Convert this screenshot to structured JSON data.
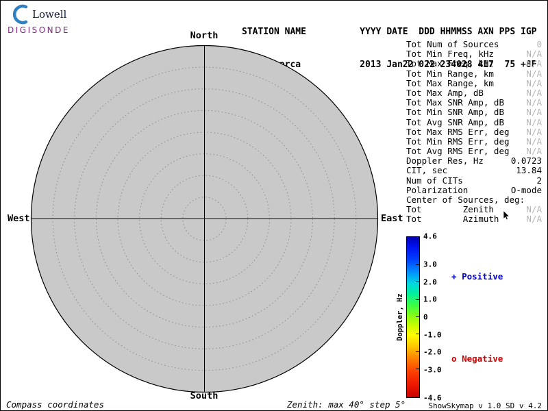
{
  "logo": {
    "name": "Lowell",
    "brand": "DIGISONDE"
  },
  "header": {
    "line1": "STATION NAME          YYYY DATE  DDD HHMMSS AXN PPS IGP",
    "line2": "  Jicamarca           2013 Jan22 022 234028 417  75 +8F"
  },
  "compass": {
    "north": "North",
    "south": "South",
    "east": "East",
    "west": "West"
  },
  "plot": {
    "coordinate_system": "Compass coordinates",
    "max_zenith_deg": 40,
    "step_deg": 5
  },
  "stats": [
    {
      "label": "Tot Num of Sources",
      "value": "0",
      "muted": true
    },
    {
      "label": "Tot Min Freq, kHz",
      "value": "N/A",
      "muted": true
    },
    {
      "label": "Tot Max Freq, kHz",
      "value": "N/A",
      "muted": true
    },
    {
      "label": "Tot Min Range, km",
      "value": "N/A",
      "muted": true
    },
    {
      "label": "Tot Max Range, km",
      "value": "N/A",
      "muted": true
    },
    {
      "label": "Tot Max Amp, dB",
      "value": "N/A",
      "muted": true
    },
    {
      "label": "Tot Max SNR Amp, dB",
      "value": "N/A",
      "muted": true
    },
    {
      "label": "Tot Min SNR Amp, dB",
      "value": "N/A",
      "muted": true
    },
    {
      "label": "Tot Avg SNR Amp, dB",
      "value": "N/A",
      "muted": true
    },
    {
      "label": "Tot Max RMS Err, deg",
      "value": "N/A",
      "muted": true
    },
    {
      "label": "Tot Min RMS Err, deg",
      "value": "N/A",
      "muted": true
    },
    {
      "label": "Tot Avg RMS Err, deg",
      "value": "N/A",
      "muted": true
    },
    {
      "label": "Doppler Res, Hz",
      "value": "0.0723",
      "muted": false
    },
    {
      "label": "CIT, sec",
      "value": "13.84",
      "muted": false
    },
    {
      "label": "Num of CITs",
      "value": "2",
      "muted": false
    },
    {
      "label": "Polarization",
      "value": "O-mode",
      "muted": false
    },
    {
      "label": "Center of Sources, deg:",
      "value": "",
      "muted": false
    },
    {
      "label": "Tot        Zenith",
      "value": "N/A",
      "muted": true
    },
    {
      "label": "Tot        Azimuth",
      "value": "N/A",
      "muted": true
    }
  ],
  "colorbar": {
    "title": "Doppler, Hz",
    "max": 4.6,
    "min": -4.6,
    "ticks": [
      {
        "label": "4.6",
        "value": 4.6
      },
      {
        "label": "3.0",
        "value": 3.0
      },
      {
        "label": "2.0",
        "value": 2.0
      },
      {
        "label": "1.0",
        "value": 1.0
      },
      {
        "label": "0",
        "value": 0
      },
      {
        "label": "-1.0",
        "value": -1.0
      },
      {
        "label": "-2.0",
        "value": -2.0
      },
      {
        "label": "-3.0",
        "value": -3.0
      },
      {
        "label": "-4.6",
        "value": -4.6
      }
    ],
    "positive_marker": "+",
    "positive_label": "Positive",
    "positive_color": "#0000cc",
    "negative_marker": "o",
    "negative_label": "Negative",
    "negative_color": "#cc0000"
  },
  "footer": {
    "left": "Compass coordinates",
    "center": "Zenith: max 40°  step 5°",
    "right": "ShowSkymap v 1.0  SD v 4.2"
  }
}
